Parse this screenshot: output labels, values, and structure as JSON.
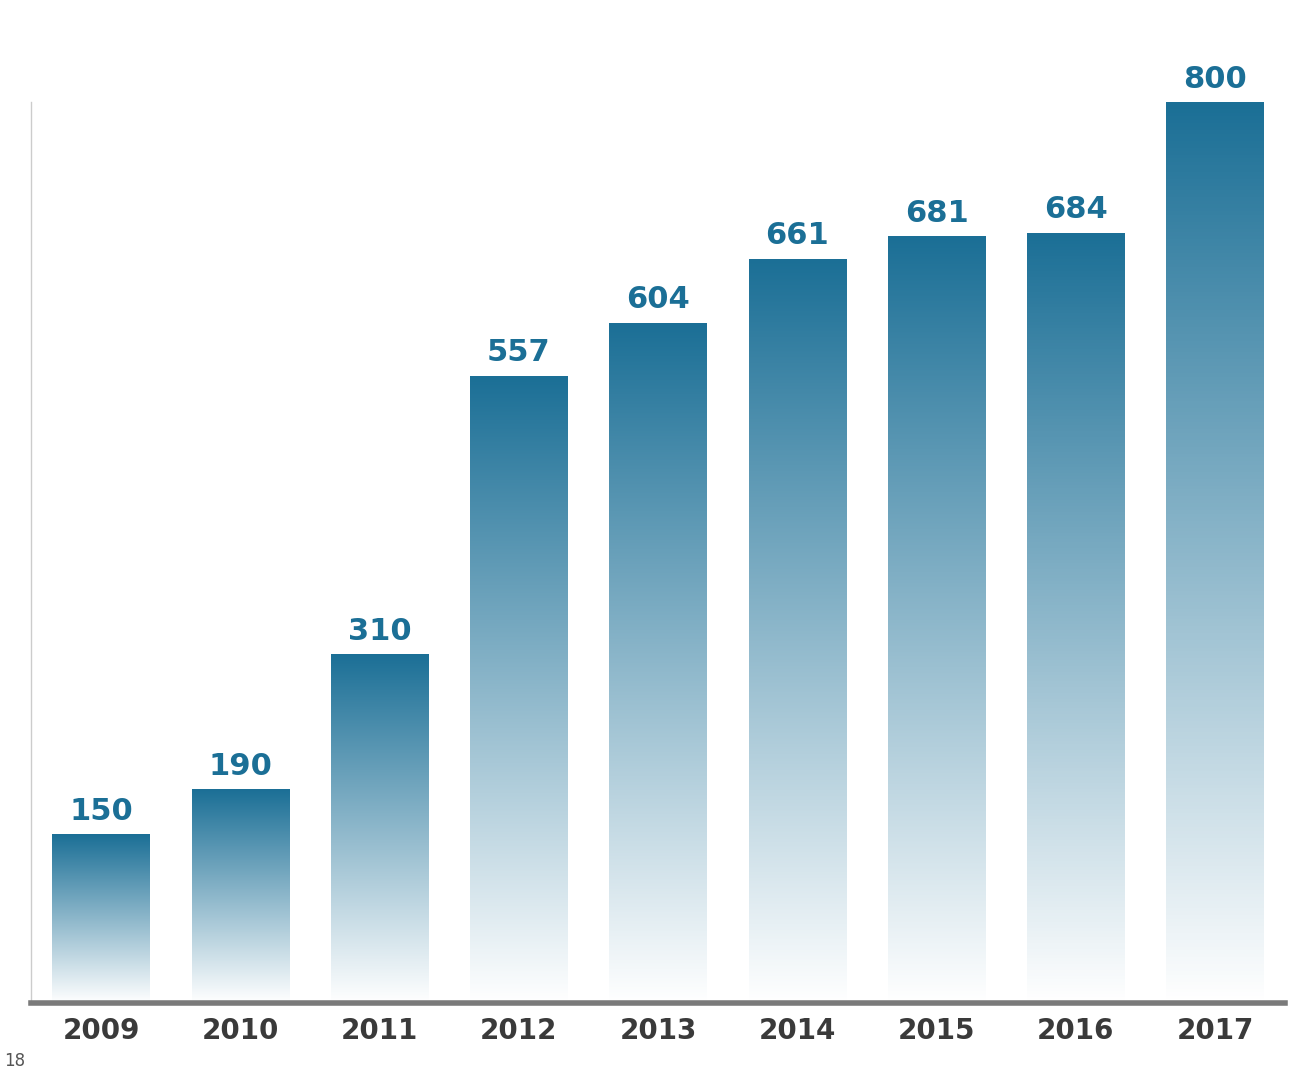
{
  "chart_data": {
    "type": "bar",
    "categories": [
      "2009",
      "2010",
      "2011",
      "2012",
      "2013",
      "2014",
      "2015",
      "2016",
      "2017"
    ],
    "values": [
      150,
      190,
      310,
      557,
      604,
      661,
      681,
      684,
      800
    ],
    "color": "#1b6f96",
    "ylim": [
      0,
      800
    ],
    "yticks": [],
    "grid": false,
    "data_labels": true,
    "tick_labels": "x"
  },
  "footer": "18"
}
